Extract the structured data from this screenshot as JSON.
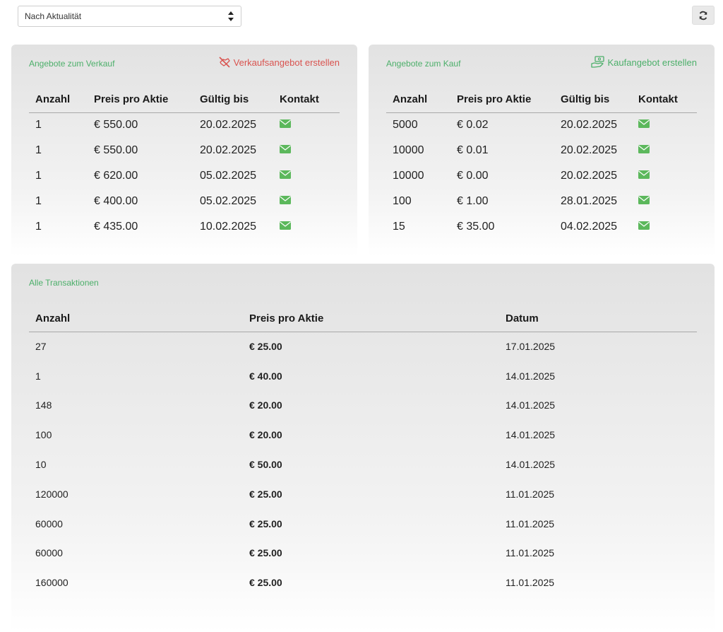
{
  "sort": {
    "selected": "Nach Aktualität"
  },
  "sell_offers": {
    "title": "Angebote zum Verkauf",
    "create_label": "Verkaufsangebot erstellen",
    "columns": [
      "Anzahl",
      "Preis pro Aktie",
      "Gültig bis",
      "Kontakt"
    ],
    "rows": [
      {
        "anzahl": "1",
        "preis": "€ 550.00",
        "gueltig": "20.02.2025"
      },
      {
        "anzahl": "1",
        "preis": "€ 550.00",
        "gueltig": "20.02.2025"
      },
      {
        "anzahl": "1",
        "preis": "€ 620.00",
        "gueltig": "05.02.2025"
      },
      {
        "anzahl": "1",
        "preis": "€ 400.00",
        "gueltig": "05.02.2025"
      },
      {
        "anzahl": "1",
        "preis": "€ 435.00",
        "gueltig": "10.02.2025"
      }
    ]
  },
  "buy_offers": {
    "title": "Angebote zum Kauf",
    "create_label": "Kaufangebot erstellen",
    "columns": [
      "Anzahl",
      "Preis pro Aktie",
      "Gültig bis",
      "Kontakt"
    ],
    "rows": [
      {
        "anzahl": "5000",
        "preis": "€ 0.02",
        "gueltig": "20.02.2025"
      },
      {
        "anzahl": "10000",
        "preis": "€ 0.01",
        "gueltig": "20.02.2025"
      },
      {
        "anzahl": "10000",
        "preis": "€ 0.00",
        "gueltig": "20.02.2025"
      },
      {
        "anzahl": "100",
        "preis": "€ 1.00",
        "gueltig": "28.01.2025"
      },
      {
        "anzahl": "15",
        "preis": "€ 35.00",
        "gueltig": "04.02.2025"
      }
    ]
  },
  "transactions": {
    "title": "Alle Transaktionen",
    "columns": [
      "Anzahl",
      "Preis pro Aktie",
      "Datum"
    ],
    "rows": [
      {
        "anzahl": "27",
        "preis": "€ 25.00",
        "datum": "17.01.2025"
      },
      {
        "anzahl": "1",
        "preis": "€ 40.00",
        "datum": "14.01.2025"
      },
      {
        "anzahl": "148",
        "preis": "€ 20.00",
        "datum": "14.01.2025"
      },
      {
        "anzahl": "100",
        "preis": "€ 20.00",
        "datum": "14.01.2025"
      },
      {
        "anzahl": "10",
        "preis": "€ 50.00",
        "datum": "14.01.2025"
      },
      {
        "anzahl": "120000",
        "preis": "€ 25.00",
        "datum": "11.01.2025"
      },
      {
        "anzahl": "60000",
        "preis": "€ 25.00",
        "datum": "11.01.2025"
      },
      {
        "anzahl": "60000",
        "preis": "€ 25.00",
        "datum": "11.01.2025"
      },
      {
        "anzahl": "160000",
        "preis": "€ 25.00",
        "datum": "11.01.2025"
      }
    ]
  },
  "icons": {
    "sort_icon": "sort-arrows-icon",
    "refresh_icon": "refresh-icon",
    "contact_icon": "envelope-icon",
    "sell_icon": "no-handshake-icon",
    "buy_icon": "hand-money-icon"
  },
  "colors": {
    "accent_green": "#4caf6a",
    "sell_red": "#d9534f",
    "mail_green": "#5cb85c"
  }
}
